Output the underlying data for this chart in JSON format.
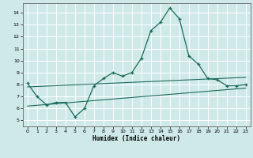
{
  "xlabel": "Humidex (Indice chaleur)",
  "xlim": [
    -0.5,
    23.5
  ],
  "ylim": [
    4.5,
    14.8
  ],
  "yticks": [
    5,
    6,
    7,
    8,
    9,
    10,
    11,
    12,
    13,
    14
  ],
  "xticks": [
    0,
    1,
    2,
    3,
    4,
    5,
    6,
    7,
    8,
    9,
    10,
    11,
    12,
    13,
    14,
    15,
    16,
    17,
    18,
    19,
    20,
    21,
    22,
    23
  ],
  "bg_color": "#cfe9e9",
  "line_color": "#1a6b5a",
  "grid_color": "#ffffff",
  "curve1_x": [
    0,
    1,
    2,
    3,
    4,
    5,
    6,
    7,
    8,
    9,
    10,
    11,
    12,
    13,
    14,
    15,
    16,
    17,
    18,
    19,
    20,
    21,
    22,
    23
  ],
  "curve1_y": [
    8.1,
    7.0,
    6.3,
    6.5,
    6.5,
    5.3,
    6.0,
    7.9,
    8.5,
    9.0,
    8.7,
    9.0,
    10.2,
    12.5,
    13.2,
    14.4,
    13.5,
    10.4,
    9.7,
    8.5,
    8.4,
    7.9,
    7.9,
    8.0
  ],
  "line1_x": [
    0,
    23
  ],
  "line1_y": [
    7.8,
    8.6
  ],
  "line2_x": [
    0,
    23
  ],
  "line2_y": [
    6.2,
    7.7
  ]
}
